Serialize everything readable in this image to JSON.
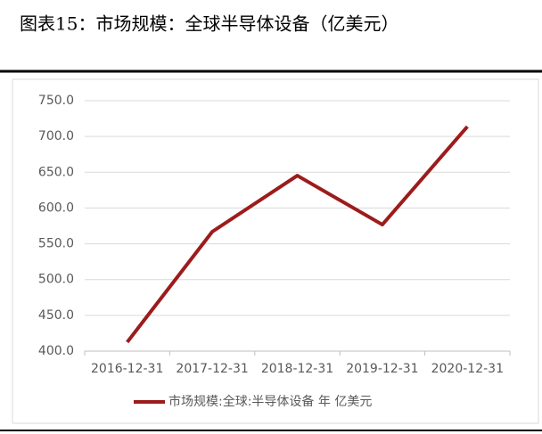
{
  "chart_data": {
    "type": "line",
    "title": "图表15：市场规模：全球半导体设备（亿美元）",
    "categories": [
      "2016-12-31",
      "2017-12-31",
      "2018-12-31",
      "2019-12-31",
      "2020-12-31"
    ],
    "series": [
      {
        "name": "市场规模:全球:半导体设备 年 亿美元",
        "color": "#9c1c1c",
        "values": [
          412.5,
          566.9,
          645.3,
          576.8,
          713.8
        ]
      }
    ],
    "ylim": [
      400,
      750
    ],
    "yticks": [
      {
        "value": 400,
        "label": "400.0"
      },
      {
        "value": 450,
        "label": "450.0"
      },
      {
        "value": 500,
        "label": "500.0"
      },
      {
        "value": 550,
        "label": "550.0"
      },
      {
        "value": 600,
        "label": "600.0"
      },
      {
        "value": 650,
        "label": "650.0"
      },
      {
        "value": 700,
        "label": "700.0"
      },
      {
        "value": 750,
        "label": "750.0"
      }
    ],
    "grid": true,
    "legend": "bottom"
  }
}
